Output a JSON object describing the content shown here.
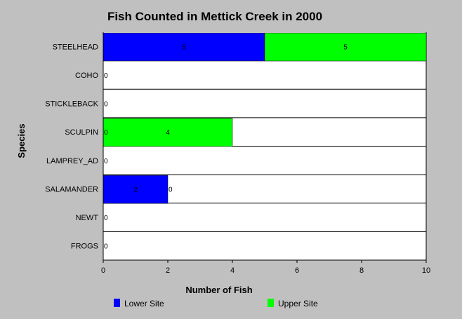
{
  "chart_data": {
    "type": "bar",
    "orientation": "horizontal",
    "stacked": true,
    "title": "Fish Counted in Mettick Creek in 2000",
    "xlabel": "Number of Fish",
    "ylabel": "Species",
    "xlim": [
      0,
      10
    ],
    "xticks": [
      0,
      2,
      4,
      6,
      8,
      10
    ],
    "categories": [
      "STEELHEAD",
      "COHO",
      "STICKLEBACK",
      "SCULPIN",
      "LAMPREY_AD",
      "SALAMANDER",
      "NEWT",
      "FROGS"
    ],
    "series": [
      {
        "name": "Lower Site",
        "color": "#0000ff",
        "values": [
          5,
          0,
          0,
          0,
          0,
          2,
          0,
          0
        ]
      },
      {
        "name": "Upper Site",
        "color": "#00ff00",
        "values": [
          5,
          0,
          0,
          4,
          0,
          0,
          0,
          0
        ]
      }
    ],
    "data_labels": [
      [
        "5",
        "5"
      ],
      [
        "0"
      ],
      [
        "0"
      ],
      [
        "0",
        "4"
      ],
      [
        "0"
      ],
      [
        "2",
        "0"
      ],
      [
        "0"
      ],
      [
        "0"
      ]
    ],
    "legend_position": "bottom",
    "grid": "horizontal-category-separators",
    "plot_background": "#ffffff",
    "page_background": "#c0c0c0"
  }
}
